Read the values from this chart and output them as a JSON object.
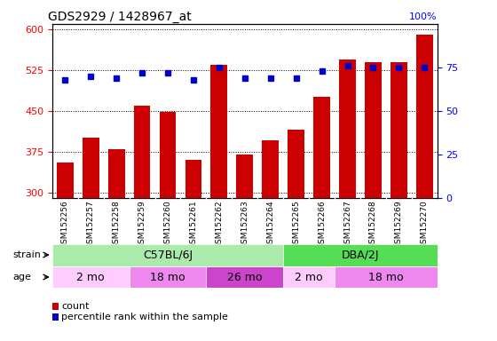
{
  "title": "GDS2929 / 1428967_at",
  "samples": [
    "GSM152256",
    "GSM152257",
    "GSM152258",
    "GSM152259",
    "GSM152260",
    "GSM152261",
    "GSM152262",
    "GSM152263",
    "GSM152264",
    "GSM152265",
    "GSM152266",
    "GSM152267",
    "GSM152268",
    "GSM152269",
    "GSM152270"
  ],
  "counts": [
    355,
    400,
    380,
    460,
    448,
    360,
    535,
    370,
    395,
    415,
    475,
    545,
    540,
    540,
    590
  ],
  "percentiles": [
    68,
    70,
    69,
    72,
    72,
    68,
    75,
    69,
    69,
    69,
    73,
    76,
    75,
    75,
    75
  ],
  "ylim_left": [
    290,
    610
  ],
  "ylim_right": [
    0,
    100
  ],
  "yticks_left": [
    300,
    375,
    450,
    525,
    600
  ],
  "yticks_right": [
    0,
    25,
    50,
    75
  ],
  "bar_color": "#cc0000",
  "dot_color": "#0000cc",
  "plot_bg": "#ffffff",
  "strain_groups": [
    {
      "label": "C57BL/6J",
      "start": 0,
      "end": 9,
      "color": "#aaeaaa"
    },
    {
      "label": "DBA/2J",
      "start": 9,
      "end": 15,
      "color": "#55dd55"
    }
  ],
  "age_groups": [
    {
      "label": "2 mo",
      "start": 0,
      "end": 3,
      "color": "#ffccff"
    },
    {
      "label": "18 mo",
      "start": 3,
      "end": 6,
      "color": "#ee88ee"
    },
    {
      "label": "26 mo",
      "start": 6,
      "end": 9,
      "color": "#cc44cc"
    },
    {
      "label": "2 mo",
      "start": 9,
      "end": 11,
      "color": "#ffccff"
    },
    {
      "label": "18 mo",
      "start": 11,
      "end": 15,
      "color": "#ee88ee"
    }
  ],
  "strain_label": "strain",
  "age_label": "age",
  "legend_count": "count",
  "legend_pct": "percentile rank within the sample",
  "sample_bg": "#d8d8d8",
  "background_color": "#ffffff"
}
